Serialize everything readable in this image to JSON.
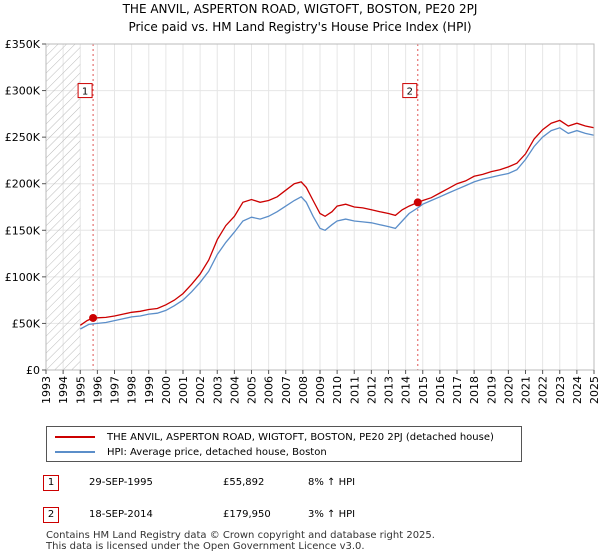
{
  "title_line1": "THE ANVIL, ASPERTON ROAD, WIGTOFT, BOSTON, PE20 2PJ",
  "title_line2": "Price paid vs. HM Land Registry's House Price Index (HPI)",
  "chart_data": {
    "type": "line",
    "ylim": [
      0,
      350000
    ],
    "xlim": [
      1993,
      2025
    ],
    "y_ticks": [
      {
        "value": 0,
        "label": "£0"
      },
      {
        "value": 50000,
        "label": "£50K"
      },
      {
        "value": 100000,
        "label": "£100K"
      },
      {
        "value": 150000,
        "label": "£150K"
      },
      {
        "value": 200000,
        "label": "£200K"
      },
      {
        "value": 250000,
        "label": "£250K"
      },
      {
        "value": 300000,
        "label": "£300K"
      },
      {
        "value": 350000,
        "label": "£350K"
      }
    ],
    "x_ticks": [
      "1993",
      "1994",
      "1995",
      "1996",
      "1997",
      "1998",
      "1999",
      "2000",
      "2001",
      "2002",
      "2003",
      "2004",
      "2005",
      "2006",
      "2007",
      "2008",
      "2009",
      "2010",
      "2011",
      "2012",
      "2013",
      "2014",
      "2015",
      "2016",
      "2017",
      "2018",
      "2019",
      "2020",
      "2021",
      "2022",
      "2023",
      "2024",
      "2025"
    ],
    "hatch_before": 1995,
    "series": [
      {
        "name": "THE ANVIL, ASPERTON ROAD, WIGTOFT, BOSTON, PE20 2PJ (detached house)",
        "color": "#cc0000",
        "points": [
          [
            1995.0,
            48000
          ],
          [
            1995.4,
            53000
          ],
          [
            1995.75,
            55892
          ],
          [
            1996.0,
            56000
          ],
          [
            1996.5,
            56500
          ],
          [
            1997.0,
            58000
          ],
          [
            1997.5,
            60000
          ],
          [
            1998.0,
            62000
          ],
          [
            1998.5,
            63000
          ],
          [
            1999.0,
            65000
          ],
          [
            1999.5,
            66000
          ],
          [
            2000.0,
            70000
          ],
          [
            2000.5,
            75000
          ],
          [
            2001.0,
            82000
          ],
          [
            2001.5,
            92000
          ],
          [
            2002.0,
            103000
          ],
          [
            2002.5,
            118000
          ],
          [
            2003.0,
            140000
          ],
          [
            2003.5,
            155000
          ],
          [
            2004.0,
            165000
          ],
          [
            2004.5,
            180000
          ],
          [
            2005.0,
            183000
          ],
          [
            2005.5,
            180000
          ],
          [
            2006.0,
            182000
          ],
          [
            2006.5,
            186000
          ],
          [
            2007.0,
            193000
          ],
          [
            2007.5,
            200000
          ],
          [
            2007.9,
            202000
          ],
          [
            2008.2,
            196000
          ],
          [
            2008.6,
            182000
          ],
          [
            2009.0,
            168000
          ],
          [
            2009.3,
            165000
          ],
          [
            2009.7,
            170000
          ],
          [
            2010.0,
            176000
          ],
          [
            2010.5,
            178000
          ],
          [
            2011.0,
            175000
          ],
          [
            2011.5,
            174000
          ],
          [
            2012.0,
            172000
          ],
          [
            2012.5,
            170000
          ],
          [
            2013.0,
            168000
          ],
          [
            2013.4,
            166000
          ],
          [
            2013.8,
            172000
          ],
          [
            2014.2,
            176000
          ],
          [
            2014.71,
            179950
          ],
          [
            2015.0,
            182000
          ],
          [
            2015.5,
            185000
          ],
          [
            2016.0,
            190000
          ],
          [
            2016.5,
            195000
          ],
          [
            2017.0,
            200000
          ],
          [
            2017.5,
            203000
          ],
          [
            2018.0,
            208000
          ],
          [
            2018.5,
            210000
          ],
          [
            2019.0,
            213000
          ],
          [
            2019.5,
            215000
          ],
          [
            2020.0,
            218000
          ],
          [
            2020.5,
            222000
          ],
          [
            2021.0,
            232000
          ],
          [
            2021.5,
            248000
          ],
          [
            2022.0,
            258000
          ],
          [
            2022.5,
            265000
          ],
          [
            2023.0,
            268000
          ],
          [
            2023.5,
            262000
          ],
          [
            2024.0,
            265000
          ],
          [
            2024.5,
            262000
          ],
          [
            2025.0,
            260000
          ]
        ]
      },
      {
        "name": "HPI: Average price, detached house, Boston",
        "color": "#5b8ec9",
        "points": [
          [
            1995.0,
            44000
          ],
          [
            1995.5,
            49000
          ],
          [
            1996.0,
            50000
          ],
          [
            1996.5,
            51000
          ],
          [
            1997.0,
            53000
          ],
          [
            1997.5,
            55000
          ],
          [
            1998.0,
            57000
          ],
          [
            1998.5,
            58000
          ],
          [
            1999.0,
            60000
          ],
          [
            1999.5,
            61000
          ],
          [
            2000.0,
            64000
          ],
          [
            2000.5,
            69000
          ],
          [
            2001.0,
            75000
          ],
          [
            2001.5,
            84000
          ],
          [
            2002.0,
            94000
          ],
          [
            2002.5,
            106000
          ],
          [
            2003.0,
            124000
          ],
          [
            2003.5,
            137000
          ],
          [
            2004.0,
            148000
          ],
          [
            2004.5,
            160000
          ],
          [
            2005.0,
            164000
          ],
          [
            2005.5,
            162000
          ],
          [
            2006.0,
            165000
          ],
          [
            2006.5,
            170000
          ],
          [
            2007.0,
            176000
          ],
          [
            2007.5,
            182000
          ],
          [
            2007.9,
            186000
          ],
          [
            2008.2,
            180000
          ],
          [
            2008.6,
            165000
          ],
          [
            2009.0,
            152000
          ],
          [
            2009.3,
            150000
          ],
          [
            2009.7,
            156000
          ],
          [
            2010.0,
            160000
          ],
          [
            2010.5,
            162000
          ],
          [
            2011.0,
            160000
          ],
          [
            2011.5,
            159000
          ],
          [
            2012.0,
            158000
          ],
          [
            2012.5,
            156000
          ],
          [
            2013.0,
            154000
          ],
          [
            2013.4,
            152000
          ],
          [
            2013.8,
            160000
          ],
          [
            2014.2,
            168000
          ],
          [
            2014.71,
            174000
          ],
          [
            2015.0,
            178000
          ],
          [
            2015.5,
            182000
          ],
          [
            2016.0,
            186000
          ],
          [
            2016.5,
            190000
          ],
          [
            2017.0,
            194000
          ],
          [
            2017.5,
            198000
          ],
          [
            2018.0,
            202000
          ],
          [
            2018.5,
            205000
          ],
          [
            2019.0,
            207000
          ],
          [
            2019.5,
            209000
          ],
          [
            2020.0,
            211000
          ],
          [
            2020.5,
            215000
          ],
          [
            2021.0,
            226000
          ],
          [
            2021.5,
            240000
          ],
          [
            2022.0,
            250000
          ],
          [
            2022.5,
            257000
          ],
          [
            2023.0,
            260000
          ],
          [
            2023.5,
            254000
          ],
          [
            2024.0,
            257000
          ],
          [
            2024.5,
            254000
          ],
          [
            2025.0,
            252000
          ]
        ]
      }
    ],
    "sales": [
      {
        "label": "1",
        "x": 1995.75,
        "y": 55892
      },
      {
        "label": "2",
        "x": 2014.71,
        "y": 179950
      }
    ],
    "annotation_y": 300000
  },
  "legend": {
    "entry1": "THE ANVIL, ASPERTON ROAD, WIGTOFT, BOSTON, PE20 2PJ (detached house)",
    "entry2": "HPI: Average price, detached house, Boston",
    "color1": "#cc0000",
    "color2": "#5b8ec9"
  },
  "sales_table": [
    {
      "num": "1",
      "date": "29-SEP-1995",
      "price": "£55,892",
      "hpi": "8% ↑ HPI"
    },
    {
      "num": "2",
      "date": "18-SEP-2014",
      "price": "£179,950",
      "hpi": "3% ↑ HPI"
    }
  ],
  "footer": {
    "line1": "Contains HM Land Registry data © Crown copyright and database right 2025.",
    "line2": "This data is licensed under the Open Government Licence v3.0."
  }
}
